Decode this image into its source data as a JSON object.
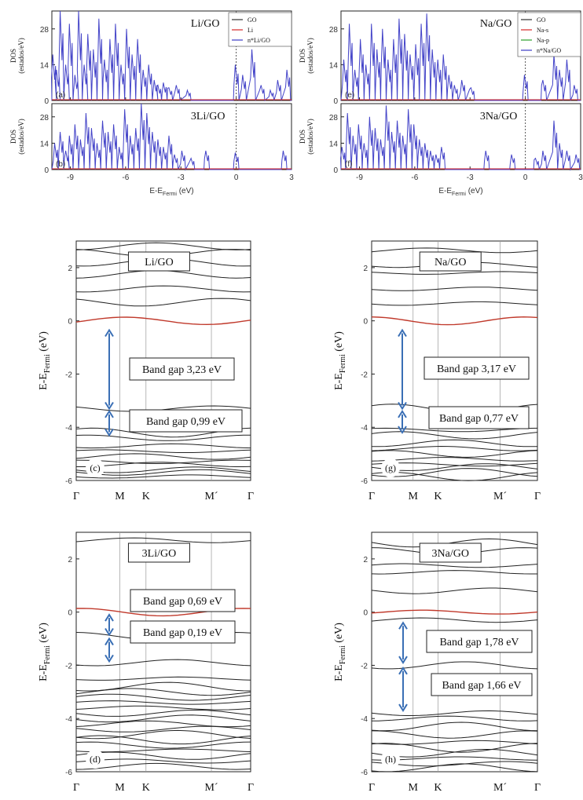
{
  "figure": {
    "dos_ylabel_1": "DOS",
    "dos_ylabel_2": "(estados/eV)",
    "dos_xlabel": "E-E",
    "dos_xlabel_sub": "Fermi",
    "dos_xlabel_unit": " (eV)",
    "band_ylabel": "E-E",
    "band_ylabel_sub": "Fermi",
    "band_ylabel_unit": " (eV)",
    "k_labels": [
      "Γ",
      "M",
      "K",
      "M´",
      "Γ"
    ]
  },
  "chart_data": [
    {
      "type": "line",
      "panel": "(a)",
      "title": "Li/GO",
      "legend": [
        "GO",
        "Li",
        "n*Li/GO"
      ],
      "series_colors": [
        "#333333",
        "#d62728",
        "#3b3bc4"
      ],
      "xlim": [
        -10,
        3
      ],
      "ylim": [
        0,
        35
      ],
      "xticks": [
        -9,
        -6,
        -3,
        0,
        3
      ],
      "yticks": [
        0,
        14,
        28
      ],
      "fermi_line": 0,
      "peaks_x": [
        -9.9,
        -9.7,
        -9.5,
        -9.2,
        -9.0,
        -8.7,
        -8.5,
        -8.2,
        -8.0,
        -7.7,
        -7.4,
        -7.1,
        -6.8,
        -6.5,
        -6.2,
        -5.9,
        -5.6,
        -5.3,
        -5.0,
        -4.7,
        -4.4,
        -4.2,
        -3.9,
        -3.6,
        -3.2,
        -2.6,
        0.0,
        0.4,
        0.9,
        1.4,
        1.9,
        2.3,
        2.8
      ],
      "peaks_y": [
        18,
        12,
        35,
        14,
        30,
        10,
        35,
        14,
        26,
        20,
        32,
        16,
        24,
        30,
        14,
        28,
        18,
        24,
        12,
        14,
        8,
        6,
        7,
        5,
        6,
        4,
        14,
        10,
        20,
        6,
        4,
        8,
        12
      ]
    },
    {
      "type": "line",
      "panel": "(b)",
      "title": "3Li/GO",
      "xlim": [
        -10,
        3
      ],
      "ylim": [
        0,
        35
      ],
      "xticks": [
        -9,
        -6,
        -3,
        0,
        3
      ],
      "xticklabels": [
        "-9",
        "-6",
        "-3",
        "0",
        "3"
      ],
      "yticks": [
        0,
        14,
        28
      ],
      "fermi_line": 0,
      "peaks_x": [
        -9.8,
        -9.5,
        -9.2,
        -9.0,
        -8.7,
        -8.4,
        -8.1,
        -7.8,
        -7.5,
        -7.2,
        -6.9,
        -6.6,
        -6.3,
        -6.0,
        -5.7,
        -5.4,
        -5.1,
        -4.8,
        -4.5,
        -4.2,
        -3.9,
        -3.6,
        -3.3,
        -2.9,
        -2.4,
        -1.6,
        0.0,
        2.6
      ],
      "peaks_y": [
        14,
        20,
        10,
        18,
        24,
        16,
        30,
        22,
        14,
        26,
        20,
        24,
        12,
        32,
        18,
        22,
        35,
        30,
        20,
        16,
        12,
        18,
        8,
        10,
        6,
        10,
        9,
        10
      ]
    },
    {
      "type": "line",
      "panel": "(e)",
      "title": "Na/GO",
      "legend": [
        "GO",
        "Na-s",
        "Na-p",
        "n*Na/GO"
      ],
      "series_colors": [
        "#333333",
        "#d62728",
        "#2ca02c",
        "#3b3bc4"
      ],
      "xlim": [
        -10,
        3
      ],
      "ylim": [
        0,
        35
      ],
      "xticks": [
        -9,
        -6,
        -3,
        0,
        3
      ],
      "yticks": [
        0,
        14,
        28
      ],
      "fermi_line": 0,
      "peaks_x": [
        -9.8,
        -9.5,
        -9.2,
        -8.9,
        -8.6,
        -8.3,
        -8.0,
        -7.7,
        -7.4,
        -7.1,
        -6.8,
        -6.5,
        -6.2,
        -5.9,
        -5.6,
        -5.3,
        -5.0,
        -4.7,
        -4.4,
        -4.1,
        -3.8,
        -3.4,
        -2.9,
        0.0,
        1.0,
        1.6,
        1.9,
        2.3,
        2.7
      ],
      "peaks_y": [
        16,
        30,
        12,
        24,
        14,
        30,
        20,
        28,
        16,
        24,
        32,
        26,
        18,
        22,
        30,
        34,
        20,
        16,
        18,
        10,
        6,
        8,
        5,
        10,
        8,
        18,
        12,
        16,
        6
      ]
    },
    {
      "type": "line",
      "panel": "(f)",
      "title": "3Na/GO",
      "xlim": [
        -10,
        3
      ],
      "ylim": [
        0,
        35
      ],
      "xticks": [
        -9,
        -6,
        -3,
        0,
        3
      ],
      "xticklabels": [
        "-9",
        "-6",
        "-3",
        "0",
        "3"
      ],
      "yticks": [
        0,
        14,
        28
      ],
      "fermi_line": 0,
      "peaks_x": [
        -9.9,
        -9.6,
        -9.3,
        -9.0,
        -8.7,
        -8.4,
        -8.1,
        -7.8,
        -7.5,
        -7.2,
        -6.9,
        -6.6,
        -6.3,
        -6.0,
        -5.7,
        -5.4,
        -5.1,
        -4.8,
        -4.5,
        -2.1,
        -0.7,
        0.6,
        1.0,
        1.6,
        1.9,
        2.3,
        2.8
      ],
      "peaks_y": [
        12,
        30,
        18,
        24,
        14,
        28,
        22,
        16,
        34,
        20,
        26,
        18,
        32,
        24,
        16,
        14,
        10,
        8,
        12,
        10,
        8,
        6,
        10,
        26,
        14,
        10,
        8
      ]
    },
    {
      "type": "line",
      "panel": "(c)",
      "title": "Li/GO",
      "xlim": [
        0,
        4
      ],
      "ylim": [
        -6,
        3
      ],
      "yticks": [
        -6,
        -4,
        -2,
        0,
        2
      ],
      "kpoints": [
        0,
        1,
        1.6,
        3.1,
        4
      ],
      "bands_valence": [
        -3.3,
        -4.2,
        -4.4,
        -4.7,
        -4.9,
        -5.1,
        -5.3,
        -5.4,
        -5.6,
        -5.7,
        -5.85
      ],
      "bands_conduction": [
        0.7,
        1.2,
        1.75,
        2.2,
        2.55,
        2.8
      ],
      "fermi_band": 0.0,
      "annotations": [
        "Band gap 3,23 eV",
        "Band gap 0,99 eV"
      ]
    },
    {
      "type": "line",
      "panel": "(d)",
      "title": "3Li/GO",
      "xlim": [
        0,
        4
      ],
      "ylim": [
        -6,
        3
      ],
      "yticks": [
        -6,
        -4,
        -2,
        0,
        2
      ],
      "kpoints": [
        0,
        1,
        1.6,
        3.1,
        4
      ],
      "bands_valence": [
        -0.9,
        -1.9,
        -2.5,
        -2.8,
        -3.0,
        -3.2,
        -3.4,
        -3.6,
        -3.8,
        -4.0,
        -4.2,
        -4.4,
        -4.6,
        -4.8,
        -5.0,
        -5.2,
        -5.4,
        -5.6,
        -5.8
      ],
      "bands_conduction": [
        2.7
      ],
      "fermi_band": 0.0,
      "annotations": [
        "Band gap 0,69 eV",
        "Band gap 0,19 eV"
      ]
    },
    {
      "type": "line",
      "panel": "(g)",
      "title": "Na/GO",
      "xlim": [
        0,
        4
      ],
      "ylim": [
        -6,
        3
      ],
      "yticks": [
        -6,
        -4,
        -2,
        0,
        2
      ],
      "kpoints": [
        0,
        1,
        1.6,
        3.1,
        4
      ],
      "bands_valence": [
        -3.3,
        -4.1,
        -4.3,
        -4.6,
        -4.8,
        -5.0,
        -5.2,
        -5.4,
        -5.5,
        -5.7,
        -5.85
      ],
      "bands_conduction": [
        0.65,
        1.2,
        1.8,
        2.1,
        2.65
      ],
      "fermi_band": 0.0,
      "annotations": [
        "Band gap 3,17 eV",
        "Band gap 0,77 eV"
      ]
    },
    {
      "type": "line",
      "panel": "(h)",
      "title": "3Na/GO",
      "xlim": [
        0,
        4
      ],
      "ylim": [
        -6,
        3
      ],
      "yticks": [
        -6,
        -4,
        -2,
        0,
        2
      ],
      "kpoints": [
        0,
        1,
        1.6,
        3.1,
        4
      ],
      "bands_valence": [
        -0.3,
        -2.0,
        -3.8,
        -4.0,
        -4.3,
        -4.6,
        -4.9,
        -5.1,
        -5.3,
        -5.5,
        -5.7,
        -5.85
      ],
      "bands_conduction": [
        0.8,
        1.5,
        1.75,
        2.3,
        2.6
      ],
      "fermi_band": 0.0,
      "annotations": [
        "Band gap 1,78 eV",
        "Band gap 1,66 eV"
      ]
    }
  ]
}
